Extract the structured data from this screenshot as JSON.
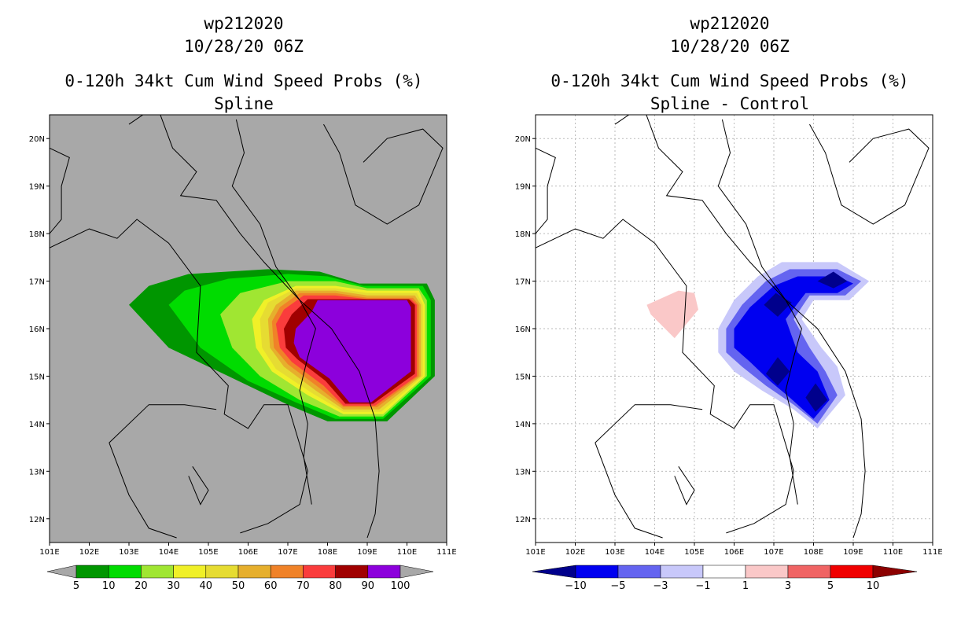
{
  "chart_data": [
    {
      "type": "filled-contour-map",
      "title": [
        "wp212020",
        "10/28/20 06Z",
        "0-120h 34kt Cum Wind Speed Probs (%)",
        "Spline"
      ],
      "lon_range": [
        101,
        111
      ],
      "lat_range": [
        11.5,
        20.5
      ],
      "x_tick_labels": [
        "101E",
        "102E",
        "103E",
        "104E",
        "105E",
        "106E",
        "107E",
        "108E",
        "109E",
        "110E",
        "111E"
      ],
      "y_tick_labels": [
        "12N",
        "13N",
        "14N",
        "15N",
        "16N",
        "17N",
        "18N",
        "19N",
        "20N"
      ],
      "background": "#a8a8a8",
      "grid": false,
      "colorbar": {
        "labels": [
          "5",
          "10",
          "20",
          "30",
          "40",
          "50",
          "60",
          "70",
          "80",
          "90",
          "100"
        ],
        "colors": [
          "#009600",
          "#00dc00",
          "#a0e632",
          "#f0f028",
          "#e6dc32",
          "#e6af2d",
          "#f08228",
          "#fa3c3c",
          "#a00000",
          "#8c00dc"
        ]
      },
      "levels": [
        5,
        10,
        20,
        30,
        40,
        50,
        60,
        70,
        80,
        90
      ],
      "contours": [
        {
          "level": 5,
          "color": "#009600",
          "polygon": [
            [
              103,
              16.5
            ],
            [
              103.5,
              16.9
            ],
            [
              104.5,
              17.15
            ],
            [
              106.5,
              17.25
            ],
            [
              107.8,
              17.2
            ],
            [
              108.8,
              16.95
            ],
            [
              110.5,
              16.95
            ],
            [
              110.7,
              16.6
            ],
            [
              110.7,
              15.0
            ],
            [
              109.5,
              14.05
            ],
            [
              108,
              14.05
            ],
            [
              107,
              14.4
            ],
            [
              105.5,
              15.0
            ],
            [
              104,
              15.6
            ]
          ]
        },
        {
          "level": 10,
          "color": "#00dc00",
          "polygon": [
            [
              104,
              16.5
            ],
            [
              104.4,
              16.8
            ],
            [
              105.5,
              17.05
            ],
            [
              107,
              17.15
            ],
            [
              108,
              17.1
            ],
            [
              108.9,
              16.9
            ],
            [
              110.4,
              16.9
            ],
            [
              110.6,
              16.6
            ],
            [
              110.6,
              15.0
            ],
            [
              109.4,
              14.1
            ],
            [
              108.2,
              14.1
            ],
            [
              107.2,
              14.45
            ],
            [
              106,
              14.9
            ],
            [
              104.8,
              15.6
            ]
          ]
        },
        {
          "level": 20,
          "color": "#a0e632",
          "polygon": [
            [
              105.3,
              16.3
            ],
            [
              105.8,
              16.75
            ],
            [
              107,
              17.0
            ],
            [
              108.2,
              17.0
            ],
            [
              109,
              16.85
            ],
            [
              110.3,
              16.85
            ],
            [
              110.5,
              16.6
            ],
            [
              110.5,
              15.0
            ],
            [
              109.4,
              14.15
            ],
            [
              108.3,
              14.15
            ],
            [
              107.3,
              14.5
            ],
            [
              106.3,
              15.0
            ],
            [
              105.6,
              15.6
            ]
          ]
        },
        {
          "level": 30,
          "color": "#f0f028",
          "polygon": [
            [
              106.1,
              16.2
            ],
            [
              106.4,
              16.6
            ],
            [
              107.2,
              16.9
            ],
            [
              108.2,
              16.9
            ],
            [
              109,
              16.8
            ],
            [
              110.3,
              16.8
            ],
            [
              110.45,
              16.5
            ],
            [
              110.45,
              15.0
            ],
            [
              109.4,
              14.2
            ],
            [
              108.4,
              14.2
            ],
            [
              107.5,
              14.6
            ],
            [
              106.6,
              15.1
            ],
            [
              106.2,
              15.6
            ]
          ]
        },
        {
          "level": 40,
          "color": "#e6dc32",
          "polygon": [
            [
              106.3,
              16.2
            ],
            [
              106.5,
              16.55
            ],
            [
              107.2,
              16.85
            ],
            [
              108.2,
              16.85
            ],
            [
              109,
              16.75
            ],
            [
              110.25,
              16.75
            ],
            [
              110.4,
              16.5
            ],
            [
              110.4,
              15.0
            ],
            [
              109.35,
              14.25
            ],
            [
              108.4,
              14.25
            ],
            [
              107.6,
              14.65
            ],
            [
              106.7,
              15.15
            ],
            [
              106.35,
              15.6
            ]
          ]
        },
        {
          "level": 50,
          "color": "#e6af2d",
          "polygon": [
            [
              106.5,
              16.2
            ],
            [
              106.7,
              16.5
            ],
            [
              107.2,
              16.8
            ],
            [
              108.2,
              16.8
            ],
            [
              109,
              16.7
            ],
            [
              110.2,
              16.7
            ],
            [
              110.35,
              16.5
            ],
            [
              110.35,
              15.0
            ],
            [
              109.3,
              14.3
            ],
            [
              108.4,
              14.3
            ],
            [
              107.7,
              14.7
            ],
            [
              106.9,
              15.2
            ],
            [
              106.55,
              15.6
            ]
          ]
        },
        {
          "level": 60,
          "color": "#f08228",
          "polygon": [
            [
              106.6,
              16.15
            ],
            [
              106.8,
              16.45
            ],
            [
              107.3,
              16.75
            ],
            [
              108.2,
              16.75
            ],
            [
              109,
              16.65
            ],
            [
              110.15,
              16.65
            ],
            [
              110.3,
              16.5
            ],
            [
              110.3,
              15.0
            ],
            [
              109.25,
              14.35
            ],
            [
              108.4,
              14.35
            ],
            [
              107.8,
              14.75
            ],
            [
              107.0,
              15.25
            ],
            [
              106.65,
              15.6
            ]
          ]
        },
        {
          "level": 70,
          "color": "#fa3c3c",
          "polygon": [
            [
              106.7,
              16.1
            ],
            [
              106.9,
              16.4
            ],
            [
              107.4,
              16.7
            ],
            [
              108.2,
              16.7
            ],
            [
              109,
              16.62
            ],
            [
              110.1,
              16.62
            ],
            [
              110.25,
              16.5
            ],
            [
              110.25,
              15.0
            ],
            [
              109.2,
              14.38
            ],
            [
              108.4,
              14.38
            ],
            [
              107.9,
              14.8
            ],
            [
              107.1,
              15.3
            ],
            [
              106.8,
              15.6
            ]
          ]
        },
        {
          "level": 80,
          "color": "#a00000",
          "polygon": [
            [
              106.9,
              16.0
            ],
            [
              107.1,
              16.3
            ],
            [
              107.5,
              16.62
            ],
            [
              110.05,
              16.62
            ],
            [
              110.2,
              16.5
            ],
            [
              110.2,
              15.05
            ],
            [
              109.15,
              14.42
            ],
            [
              108.45,
              14.42
            ],
            [
              107.95,
              14.9
            ],
            [
              107.25,
              15.35
            ],
            [
              106.95,
              15.6
            ]
          ]
        },
        {
          "level": 90,
          "color": "#8c00dc",
          "polygon": [
            [
              107.2,
              16.0
            ],
            [
              107.6,
              16.35
            ],
            [
              107.75,
              16.6
            ],
            [
              110,
              16.6
            ],
            [
              110.1,
              16.45
            ],
            [
              110.1,
              15.1
            ],
            [
              109.1,
              14.45
            ],
            [
              108.55,
              14.45
            ],
            [
              108.05,
              14.95
            ],
            [
              107.3,
              15.4
            ],
            [
              107.15,
              15.7
            ]
          ]
        }
      ]
    },
    {
      "type": "filled-contour-map",
      "title": [
        "wp212020",
        "10/28/20 06Z",
        "0-120h 34kt Cum Wind Speed Probs (%)",
        "Spline - Control"
      ],
      "lon_range": [
        101,
        111
      ],
      "lat_range": [
        11.5,
        20.5
      ],
      "x_tick_labels": [
        "101E",
        "102E",
        "103E",
        "104E",
        "105E",
        "106E",
        "107E",
        "108E",
        "109E",
        "110E",
        "111E"
      ],
      "y_tick_labels": [
        "12N",
        "13N",
        "14N",
        "15N",
        "16N",
        "17N",
        "18N",
        "19N",
        "20N"
      ],
      "background": "#ffffff",
      "grid": true,
      "colorbar": {
        "labels": [
          "-10",
          "-5",
          "-3",
          "-1",
          "1",
          "3",
          "5",
          "10"
        ],
        "colors": [
          "#00008c",
          "#0000f0",
          "#6464f0",
          "#c8c8fa",
          "#ffffff",
          "#fac8c8",
          "#f06464",
          "#f00000",
          "#8c0000"
        ]
      },
      "contours": [
        {
          "level": 1,
          "color": "#fac8c8",
          "polygon": [
            [
              103.8,
              16.5
            ],
            [
              104.6,
              16.8
            ],
            [
              105.0,
              16.75
            ],
            [
              105.1,
              16.4
            ],
            [
              104.5,
              15.8
            ],
            [
              103.9,
              16.3
            ]
          ]
        },
        {
          "level": -1,
          "color": "#c8c8fa",
          "polygon": [
            [
              105.6,
              16.0
            ],
            [
              106.0,
              16.6
            ],
            [
              106.6,
              17.1
            ],
            [
              107.2,
              17.4
            ],
            [
              108.6,
              17.4
            ],
            [
              109.4,
              17.0
            ],
            [
              108.9,
              16.6
            ],
            [
              108.0,
              16.6
            ],
            [
              107.7,
              16.2
            ],
            [
              108.2,
              15.6
            ],
            [
              108.6,
              15.2
            ],
            [
              108.8,
              14.6
            ],
            [
              108.1,
              13.9
            ],
            [
              107.5,
              14.3
            ],
            [
              106.7,
              14.7
            ],
            [
              106.0,
              15.1
            ],
            [
              105.6,
              15.5
            ]
          ]
        },
        {
          "level": -3,
          "color": "#6464f0",
          "polygon": [
            [
              105.8,
              16.0
            ],
            [
              106.2,
              16.5
            ],
            [
              106.8,
              17.0
            ],
            [
              107.4,
              17.25
            ],
            [
              108.6,
              17.25
            ],
            [
              109.2,
              17.0
            ],
            [
              108.8,
              16.7
            ],
            [
              107.9,
              16.7
            ],
            [
              107.5,
              16.2
            ],
            [
              107.9,
              15.6
            ],
            [
              108.3,
              15.1
            ],
            [
              108.6,
              14.6
            ],
            [
              108.1,
              14.0
            ],
            [
              107.5,
              14.4
            ],
            [
              106.8,
              14.8
            ],
            [
              106.2,
              15.2
            ],
            [
              105.8,
              15.5
            ]
          ]
        },
        {
          "level": -5,
          "color": "#0000f0",
          "polygon": [
            [
              106.0,
              16.0
            ],
            [
              106.4,
              16.45
            ],
            [
              107.0,
              16.9
            ],
            [
              107.6,
              17.1
            ],
            [
              108.6,
              17.1
            ],
            [
              109.0,
              16.95
            ],
            [
              108.6,
              16.75
            ],
            [
              107.8,
              16.75
            ],
            [
              107.3,
              16.2
            ],
            [
              107.6,
              15.5
            ],
            [
              108.1,
              15.1
            ],
            [
              108.4,
              14.5
            ],
            [
              108.0,
              14.1
            ],
            [
              107.4,
              14.55
            ],
            [
              106.9,
              14.9
            ],
            [
              106.4,
              15.3
            ],
            [
              106.0,
              15.6
            ]
          ]
        },
        {
          "level": -10,
          "color": "#00008c",
          "polygon": [
            [
              106.75,
              16.5
            ],
            [
              107.05,
              16.75
            ],
            [
              107.45,
              16.55
            ],
            [
              107.1,
              16.25
            ]
          ]
        },
        {
          "level": -10,
          "color": "#00008c",
          "polygon": [
            [
              108.1,
              17.0
            ],
            [
              108.5,
              17.2
            ],
            [
              108.85,
              17.0
            ],
            [
              108.5,
              16.85
            ]
          ]
        },
        {
          "level": -10,
          "color": "#00008c",
          "polygon": [
            [
              106.8,
              15.05
            ],
            [
              107.1,
              15.4
            ],
            [
              107.4,
              15.1
            ],
            [
              107.1,
              14.8
            ]
          ]
        },
        {
          "level": -10,
          "color": "#00008c",
          "polygon": [
            [
              107.8,
              14.55
            ],
            [
              108.05,
              14.85
            ],
            [
              108.35,
              14.5
            ],
            [
              108.05,
              14.25
            ]
          ]
        }
      ]
    }
  ]
}
